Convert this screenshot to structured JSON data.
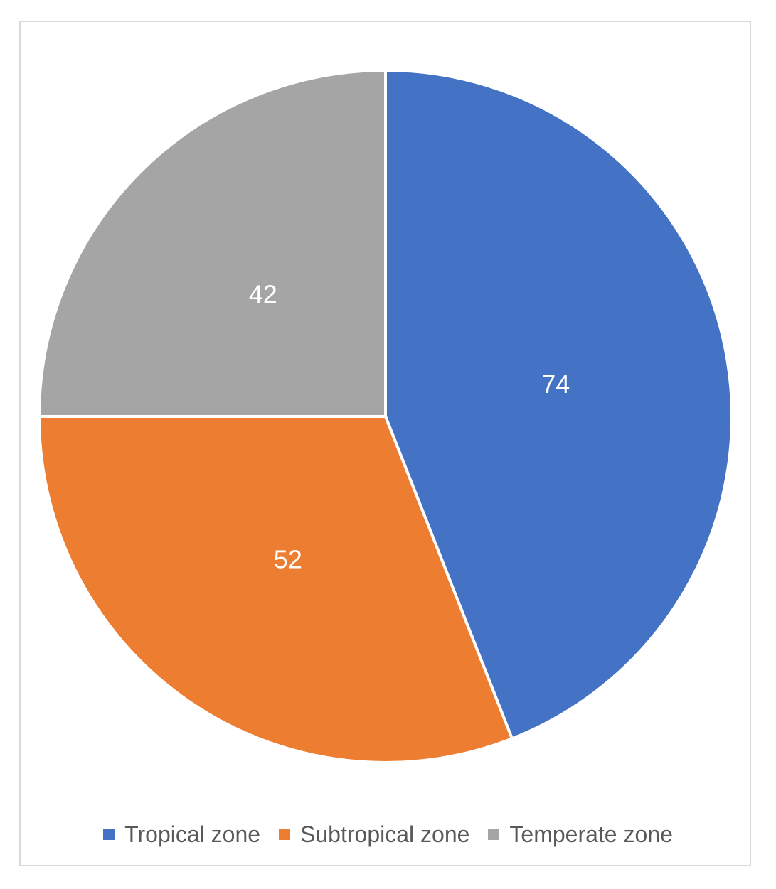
{
  "chart_data": {
    "type": "pie",
    "categories": [
      "Tropical zone",
      "Subtropical zone",
      "Temperate zone"
    ],
    "values": [
      74,
      52,
      42
    ],
    "colors": [
      "#4472c4",
      "#ed7d31",
      "#a5a5a5"
    ],
    "data_labels": [
      "74",
      "52",
      "42"
    ],
    "legend_position": "bottom",
    "title": ""
  }
}
